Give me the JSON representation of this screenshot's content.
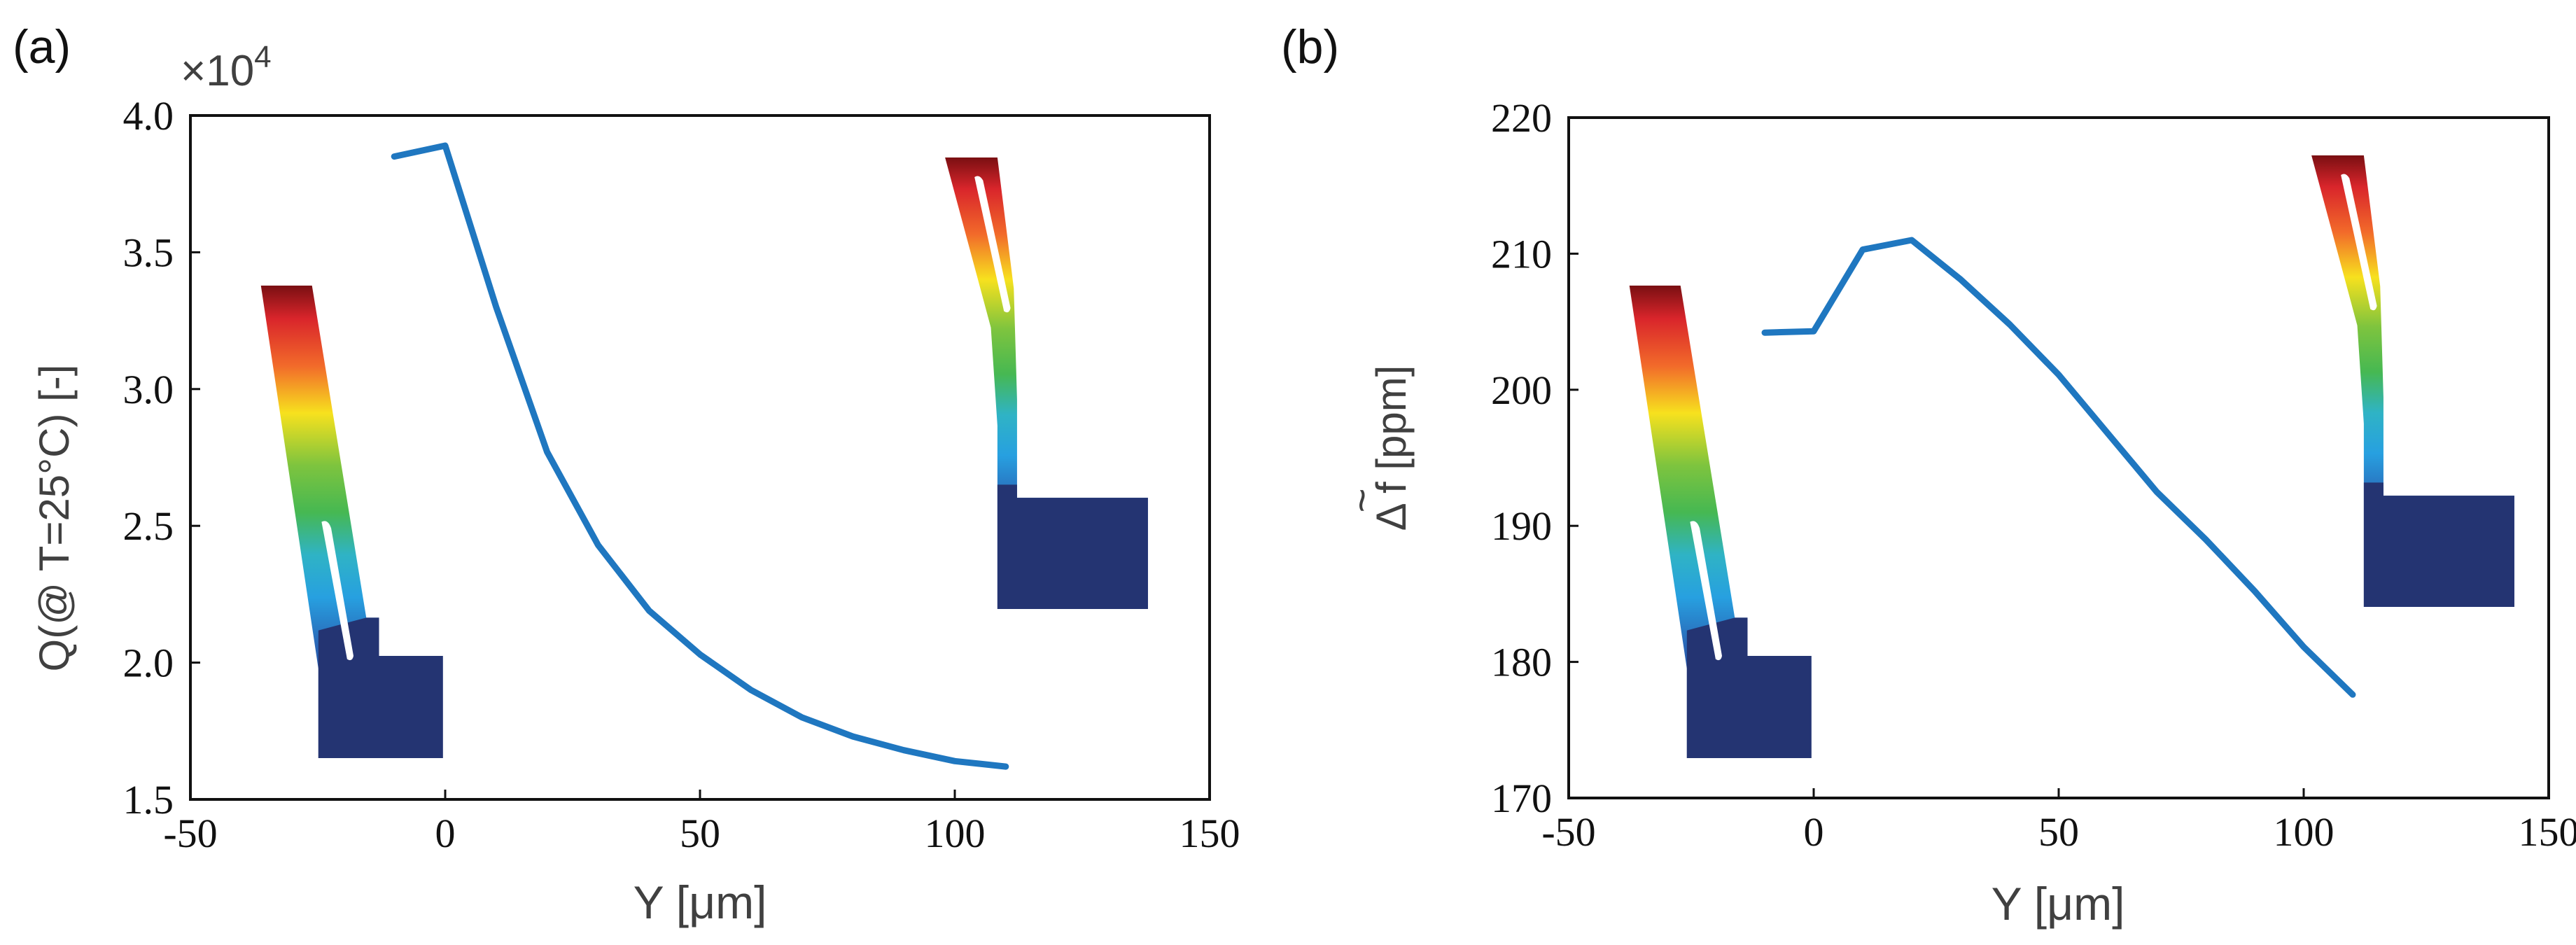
{
  "chart_data": [
    {
      "type": "line",
      "panel_label": "(a)",
      "title": "",
      "xlabel": "Y [μm]",
      "ylabel": "Q(@ T=25°C) [-]",
      "y_multiplier": "×10",
      "y_multiplier_exp": "4",
      "xlim": [
        -50,
        150
      ],
      "ylim": [
        1.5,
        4.0
      ],
      "xticks": [
        "-50",
        "0",
        "50",
        "100",
        "150"
      ],
      "yticks": [
        "1.5",
        "2.0",
        "2.5",
        "3.0",
        "3.5",
        "4.0"
      ],
      "grid": false,
      "line_color": "#1f77c0",
      "series": [
        {
          "name": "Q",
          "x": [
            -10,
            0,
            10,
            20,
            30,
            40,
            50,
            60,
            70,
            80,
            90,
            100,
            110
          ],
          "y": [
            3.85,
            3.89,
            3.3,
            2.77,
            2.43,
            2.19,
            2.03,
            1.9,
            1.8,
            1.73,
            1.68,
            1.64,
            1.62
          ]
        }
      ],
      "insets": [
        "resonator-mode-shape-left-slot",
        "resonator-mode-shape-right-slot"
      ]
    },
    {
      "type": "line",
      "panel_label": "(b)",
      "title": "",
      "xlabel": "Y [μm]",
      "ylabel": "Δ f [ppm]",
      "ylabel_tilde": "~",
      "xlim": [
        -50,
        150
      ],
      "ylim": [
        170,
        220
      ],
      "xticks": [
        "-50",
        "0",
        "50",
        "100",
        "150"
      ],
      "yticks": [
        "170",
        "180",
        "190",
        "200",
        "210",
        "220"
      ],
      "grid": false,
      "line_color": "#1f77c0",
      "series": [
        {
          "name": "Δf",
          "x": [
            -10,
            0,
            10,
            20,
            30,
            40,
            50,
            60,
            70,
            80,
            90,
            100,
            110
          ],
          "y": [
            204.2,
            204.3,
            210.3,
            211.0,
            208.1,
            204.8,
            201.1,
            196.8,
            192.5,
            189.0,
            185.2,
            181.1,
            177.6
          ]
        }
      ],
      "insets": [
        "resonator-mode-shape-left-slot",
        "resonator-mode-shape-right-slot"
      ]
    }
  ]
}
